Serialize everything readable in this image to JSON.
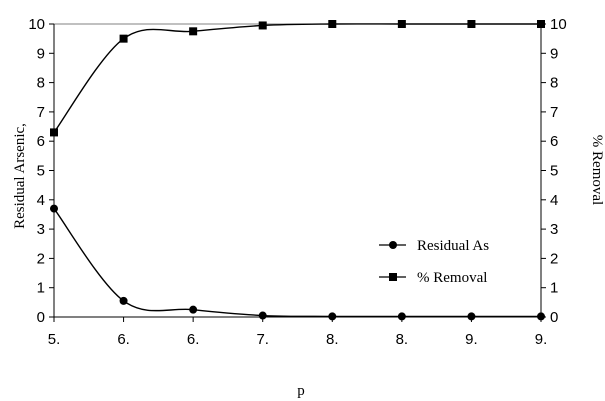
{
  "chart_data": {
    "type": "line",
    "x_tick_labels": [
      "5.",
      "6.",
      "6.",
      "7.",
      "8.",
      "8.",
      "9.",
      "9."
    ],
    "left_ylabel": "Residual Arsenic,",
    "right_ylabel": "% Removal",
    "xlabel": "p",
    "y_left_lim": [
      0,
      10
    ],
    "y_right_lim": [
      0,
      10
    ],
    "y_left_ticks": [
      "0",
      "1",
      "2",
      "3",
      "4",
      "5",
      "6",
      "7",
      "8",
      "9",
      "10"
    ],
    "y_right_ticks": [
      "0",
      "1",
      "2",
      "3",
      "4",
      "5",
      "6",
      "7",
      "8",
      "9",
      "10"
    ],
    "grid": false,
    "legend_position": "bottom-right",
    "series": [
      {
        "name": "Residual As",
        "marker": "circle",
        "axis": "left",
        "values": [
          3.7,
          0.55,
          0.25,
          0.05,
          0.02,
          0.02,
          0.02,
          0.02
        ]
      },
      {
        "name": "% Removal",
        "marker": "square",
        "axis": "right",
        "values": [
          6.3,
          9.5,
          9.75,
          9.95,
          10.0,
          10.0,
          10.0,
          10.0
        ]
      }
    ],
    "colors": {
      "line": "#000000",
      "frame": "#808080"
    }
  }
}
